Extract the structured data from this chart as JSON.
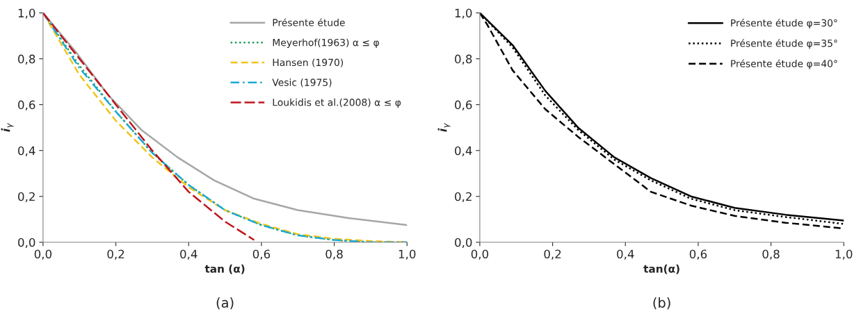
{
  "chart_data": [
    {
      "type": "line",
      "xlabel": "tan (α)",
      "ylabel": "i$_{γ}$",
      "annotations": [
        "(a)"
      ],
      "legend": "top right",
      "grid": false,
      "marker": "none",
      "xlim": [
        0,
        1
      ],
      "ylim": [
        0,
        1
      ],
      "xticks": [
        {
          "value": 0,
          "label": "0,0"
        },
        {
          "value": 0.2,
          "label": "0,2"
        },
        {
          "value": 0.4,
          "label": "0,4"
        },
        {
          "value": 0.6,
          "label": "0,6"
        },
        {
          "value": 0.8,
          "label": "0,8"
        },
        {
          "value": 1,
          "label": "1,0"
        }
      ],
      "yticks": [
        {
          "value": 0,
          "label": "0,0"
        },
        {
          "value": 0.2,
          "label": "0,2"
        },
        {
          "value": 0.4,
          "label": "0,4"
        },
        {
          "value": 0.6,
          "label": "0,6"
        },
        {
          "value": 0.8,
          "label": "0,8"
        },
        {
          "value": 1,
          "label": "1,0"
        }
      ],
      "series": [
        {
          "name": "Présente étude",
          "color": "#a6a6a6",
          "line_style": "solid",
          "x": [
            0,
            0.09,
            0.18,
            0.27,
            0.37,
            0.47,
            0.58,
            0.7,
            0.84,
            1.0
          ],
          "values": [
            1,
            0.83,
            0.64,
            0.49,
            0.37,
            0.27,
            0.19,
            0.14,
            0.105,
            0.075
          ]
        },
        {
          "name": "Meyerhof(1963) α ≤ φ",
          "color": "#1e9e5a",
          "line_style": "dotted",
          "x": [
            0,
            0.1,
            0.2,
            0.3,
            0.4,
            0.5,
            0.6,
            0.7,
            0.8,
            0.9,
            1.0
          ],
          "values": [
            1,
            0.77,
            0.57,
            0.39,
            0.25,
            0.14,
            0.075,
            0.03,
            0.01,
            0,
            0
          ]
        },
        {
          "name": "Hansen (1970)",
          "color": "#f0c419",
          "line_style": "dashed",
          "x": [
            0,
            0.1,
            0.2,
            0.3,
            0.4,
            0.5,
            0.6,
            0.7,
            0.8,
            0.9,
            1.0
          ],
          "values": [
            1,
            0.73,
            0.53,
            0.37,
            0.24,
            0.14,
            0.08,
            0.035,
            0.015,
            0.005,
            0
          ]
        },
        {
          "name": "Vesic (1975)",
          "color": "#1aa9d6",
          "line_style": "dashdot",
          "x": [
            0,
            0.1,
            0.2,
            0.3,
            0.4,
            0.5,
            0.6,
            0.7,
            0.8,
            0.9,
            1.0
          ],
          "values": [
            1,
            0.76,
            0.57,
            0.39,
            0.25,
            0.14,
            0.075,
            0.03,
            0.01,
            0,
            0
          ]
        },
        {
          "name": "Loukidis et al.(2008) α ≤ φ",
          "color": "#c0141c",
          "line_style": "longdash",
          "x": [
            0,
            0.1,
            0.2,
            0.3,
            0.4,
            0.5,
            0.58
          ],
          "values": [
            1,
            0.8,
            0.6,
            0.4,
            0.22,
            0.09,
            0.01
          ]
        }
      ]
    },
    {
      "type": "line",
      "xlabel": "tan(α)",
      "ylabel": "i$_{γ}$",
      "annotations": [
        "(b)"
      ],
      "legend": "top right",
      "grid": false,
      "marker": "none",
      "xlim": [
        0,
        1
      ],
      "ylim": [
        0,
        1
      ],
      "xticks": [
        {
          "value": 0,
          "label": "0,0"
        },
        {
          "value": 0.2,
          "label": "0,2"
        },
        {
          "value": 0.4,
          "label": "0,4"
        },
        {
          "value": 0.6,
          "label": "0,6"
        },
        {
          "value": 0.8,
          "label": "0,8"
        },
        {
          "value": 1,
          "label": "1,0"
        }
      ],
      "yticks": [
        {
          "value": 0,
          "label": "0,0"
        },
        {
          "value": 0.2,
          "label": "0,2"
        },
        {
          "value": 0.4,
          "label": "0,4"
        },
        {
          "value": 0.6,
          "label": "0,6"
        },
        {
          "value": 0.8,
          "label": "0,8"
        },
        {
          "value": 1,
          "label": "1,0"
        }
      ],
      "series": [
        {
          "name": "Présente étude φ=30°",
          "color": "#000000",
          "line_style": "solid",
          "x": [
            0,
            0.09,
            0.18,
            0.27,
            0.37,
            0.47,
            0.58,
            0.7,
            0.84,
            1.0
          ],
          "values": [
            1,
            0.86,
            0.66,
            0.5,
            0.37,
            0.28,
            0.2,
            0.15,
            0.12,
            0.095
          ]
        },
        {
          "name": "Présente étude φ=35°",
          "color": "#000000",
          "line_style": "dotted",
          "x": [
            0,
            0.09,
            0.18,
            0.27,
            0.37,
            0.47,
            0.58,
            0.7,
            0.84,
            1.0
          ],
          "values": [
            1,
            0.85,
            0.64,
            0.49,
            0.36,
            0.27,
            0.19,
            0.14,
            0.11,
            0.08
          ]
        },
        {
          "name": "Présente étude φ=40°",
          "color": "#000000",
          "line_style": "dashed",
          "x": [
            0,
            0.02,
            0.09,
            0.18,
            0.27,
            0.37,
            0.47,
            0.58,
            0.7,
            0.84,
            1.0
          ],
          "values": [
            1,
            0.95,
            0.75,
            0.58,
            0.46,
            0.34,
            0.22,
            0.16,
            0.115,
            0.085,
            0.06
          ]
        }
      ]
    }
  ]
}
